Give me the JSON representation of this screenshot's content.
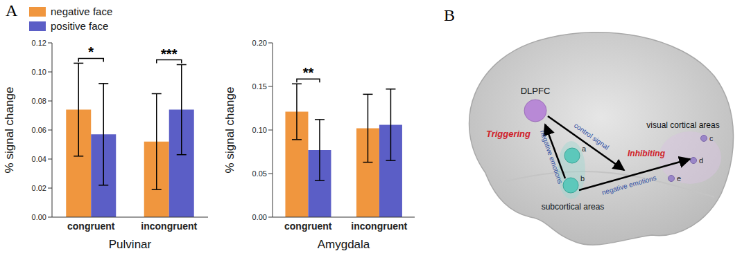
{
  "chart_data": [
    {
      "type": "bar",
      "title": "Pulvinar",
      "categories": [
        "congruent",
        "incongruent"
      ],
      "series": [
        {
          "name": "negative face",
          "color": "#F0963E",
          "values": [
            0.074,
            0.052
          ],
          "errors": [
            0.032,
            0.033
          ]
        },
        {
          "name": "positive face",
          "color": "#5B5EC6",
          "values": [
            0.057,
            0.074
          ],
          "errors": [
            0.035,
            0.031
          ]
        }
      ],
      "ylim": [
        0,
        0.12
      ],
      "yticks": [
        {
          "value": 0,
          "label": "0.00"
        },
        {
          "value": 0.02,
          "label": "0.02"
        },
        {
          "value": 0.04,
          "label": "0.04"
        },
        {
          "value": 0.06,
          "label": "0.06"
        },
        {
          "value": 0.08,
          "label": "0.08"
        },
        {
          "value": 0.1,
          "label": "0.10"
        },
        {
          "value": 0.12,
          "label": "0.12"
        }
      ],
      "y_label": "% signal change",
      "annotations": [
        {
          "category": "congruent",
          "text": "*"
        },
        {
          "category": "incongruent",
          "text": "***"
        }
      ],
      "legend": "upper left"
    },
    {
      "type": "bar",
      "title": "Amygdala",
      "categories": [
        "congruent",
        "incongruent"
      ],
      "series": [
        {
          "name": "negative face",
          "color": "#F0963E",
          "values": [
            0.121,
            0.102
          ],
          "errors": [
            0.032,
            0.039
          ]
        },
        {
          "name": "positive face",
          "color": "#5B5EC6",
          "values": [
            0.077,
            0.106
          ],
          "errors": [
            0.035,
            0.041
          ]
        }
      ],
      "ylim": [
        0,
        0.2
      ],
      "yticks": [
        {
          "value": 0,
          "label": "0.00"
        },
        {
          "value": 0.05,
          "label": "0.05"
        },
        {
          "value": 0.1,
          "label": "0.10"
        },
        {
          "value": 0.15,
          "label": "0.15"
        },
        {
          "value": 0.2,
          "label": "0.20"
        }
      ],
      "y_label": "% signal change",
      "annotations": [
        {
          "category": "congruent",
          "text": "**"
        }
      ]
    }
  ],
  "panel_labels": [
    "A",
    "B"
  ],
  "diagram": {
    "regions": {
      "dlpfc": "DLPFC",
      "subcortical": "subcortical areas",
      "visual": "visual cortical areas"
    },
    "subcortical_nodes": [
      "a",
      "b"
    ],
    "visual_nodes": [
      "c",
      "d",
      "e"
    ],
    "processes": {
      "trigger": "Triggering",
      "inhibit": "Inhibiting"
    },
    "edges": [
      {
        "from": "subcortical",
        "to": "dlpfc",
        "label": "negative emotions"
      },
      {
        "from": "dlpfc",
        "to": "inhibit",
        "label": "control signal"
      },
      {
        "from": "subcortical",
        "to": "visual",
        "label": "negative emotions"
      }
    ]
  }
}
